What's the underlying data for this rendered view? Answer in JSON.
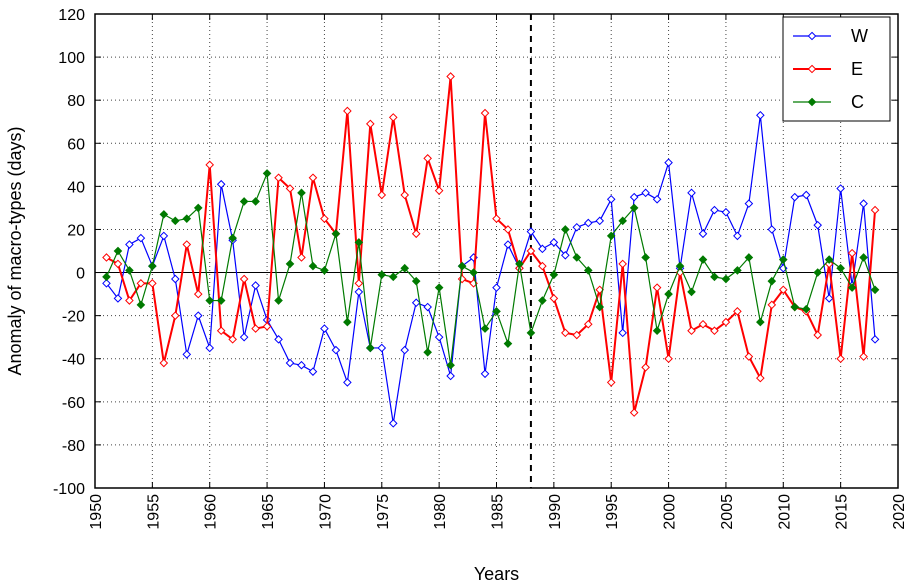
{
  "chart_data": {
    "type": "line",
    "title": "",
    "xlabel": "Years",
    "ylabel": "Anomaly of macro-types (days)",
    "xlim": [
      1950,
      2020
    ],
    "ylim": [
      -100,
      120
    ],
    "xticks": [
      1950,
      1955,
      1960,
      1965,
      1970,
      1975,
      1980,
      1985,
      1990,
      1995,
      2000,
      2005,
      2010,
      2015,
      2020
    ],
    "yticks": [
      -100,
      -80,
      -60,
      -40,
      -20,
      0,
      20,
      40,
      60,
      80,
      100,
      120
    ],
    "grid": "dotted",
    "legend_position": "top-right",
    "reference_line": {
      "x": 1988,
      "style": "dashed"
    },
    "x": [
      1951,
      1952,
      1953,
      1954,
      1955,
      1956,
      1957,
      1958,
      1959,
      1960,
      1961,
      1962,
      1963,
      1964,
      1965,
      1966,
      1967,
      1968,
      1969,
      1970,
      1971,
      1972,
      1973,
      1974,
      1975,
      1976,
      1977,
      1978,
      1979,
      1980,
      1981,
      1982,
      1983,
      1984,
      1985,
      1986,
      1987,
      1988,
      1989,
      1990,
      1991,
      1992,
      1993,
      1994,
      1995,
      1996,
      1997,
      1998,
      1999,
      2000,
      2001,
      2002,
      2003,
      2004,
      2005,
      2006,
      2007,
      2008,
      2009,
      2010,
      2011,
      2012,
      2013,
      2014,
      2015,
      2016,
      2017,
      2018
    ],
    "series": [
      {
        "name": "W",
        "color": "#0000ff",
        "marker": "open-diamond",
        "values": [
          -5,
          -12,
          13,
          16,
          3,
          17,
          -3,
          -38,
          -20,
          -35,
          41,
          15,
          -30,
          -6,
          -22,
          -31,
          -42,
          -43,
          -46,
          -26,
          -36,
          -51,
          -9,
          -35,
          -35,
          -70,
          -36,
          -14,
          -16,
          -30,
          -48,
          3,
          7,
          -47,
          -7,
          13,
          2,
          19,
          11,
          14,
          8,
          21,
          23,
          24,
          34,
          -28,
          35,
          37,
          34,
          51,
          2,
          37,
          18,
          29,
          28,
          17,
          32,
          73,
          20,
          2,
          35,
          36,
          22,
          -12,
          39,
          -6,
          32,
          -31
        ]
      },
      {
        "name": "E",
        "color": "#ff0000",
        "marker": "open-diamond",
        "values": [
          7,
          4,
          -13,
          -5,
          -5,
          -42,
          -20,
          13,
          -10,
          50,
          -27,
          -31,
          -3,
          -26,
          -25,
          44,
          39,
          7,
          44,
          25,
          18,
          75,
          -5,
          69,
          36,
          72,
          36,
          18,
          53,
          38,
          91,
          -3,
          -5,
          74,
          25,
          20,
          2,
          10,
          3,
          -12,
          -28,
          -29,
          -24,
          -8,
          -51,
          4,
          -65,
          -44,
          -7,
          -40,
          0,
          -27,
          -24,
          -27,
          -23,
          -18,
          -39,
          -49,
          -15,
          -8,
          -16,
          -18,
          -29,
          4,
          -40,
          9,
          -39,
          29
        ]
      },
      {
        "name": "C",
        "color": "#007a00",
        "marker": "filled-diamond",
        "values": [
          -2,
          10,
          1,
          -15,
          3,
          27,
          24,
          25,
          30,
          -13,
          -13,
          16,
          33,
          33,
          46,
          -13,
          4,
          37,
          3,
          1,
          18,
          -23,
          14,
          -35,
          -1,
          -2,
          2,
          -4,
          -37,
          -7,
          -43,
          3,
          0,
          -26,
          -18,
          -33,
          4,
          -28,
          -13,
          -1,
          20,
          7,
          1,
          -16,
          17,
          24,
          30,
          7,
          -27,
          -10,
          3,
          -9,
          6,
          -2,
          -3,
          1,
          7,
          -23,
          -4,
          6,
          -16,
          -17,
          0,
          6,
          2,
          -7,
          7,
          -8
        ]
      }
    ]
  }
}
